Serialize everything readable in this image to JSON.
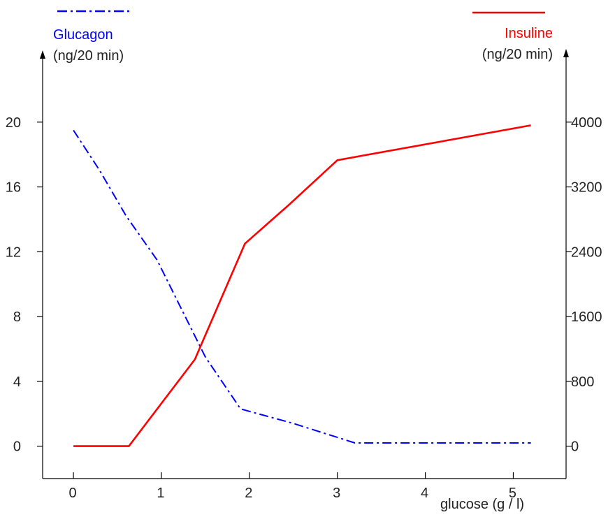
{
  "chart_data": {
    "type": "line",
    "xlabel": "glucose (g / l)",
    "x_ticks": [
      "0",
      "1",
      "2",
      "3",
      "4",
      "5"
    ],
    "left_axis": {
      "label_line1": "Glucagon",
      "label_line2": "(ng/20 min)",
      "ticks": [
        "0",
        "4",
        "8",
        "12",
        "16",
        "20"
      ],
      "ylim": [
        -2,
        24
      ]
    },
    "right_axis": {
      "label_line1": "Insuline",
      "label_line2": "(ng/20 min)",
      "ticks": [
        "0",
        "800",
        "1600",
        "2400",
        "3200",
        "4000"
      ],
      "ylim": [
        -400,
        4800
      ]
    },
    "xlim": [
      -0.35,
      5.6
    ],
    "grid": false,
    "legend_placement": "top, each above its own axis",
    "series": [
      {
        "name": "Glucagon",
        "axis": "left",
        "color": "#0000ff",
        "line_style": "dash-dot",
        "x": [
          0,
          0.3,
          0.6,
          0.95,
          1.5,
          1.9,
          2.5,
          3.2,
          5.2
        ],
        "y": [
          19.5,
          17.0,
          14.2,
          11.5,
          5.5,
          2.3,
          1.4,
          0.2,
          0.2
        ]
      },
      {
        "name": "Insuline",
        "axis": "right",
        "color": "#ff0000",
        "line_style": "solid",
        "x": [
          0,
          0.63,
          1.38,
          1.95,
          2.45,
          3.0,
          5.2
        ],
        "y": [
          0,
          0,
          1070,
          2500,
          2980,
          3530,
          3960
        ]
      }
    ]
  }
}
